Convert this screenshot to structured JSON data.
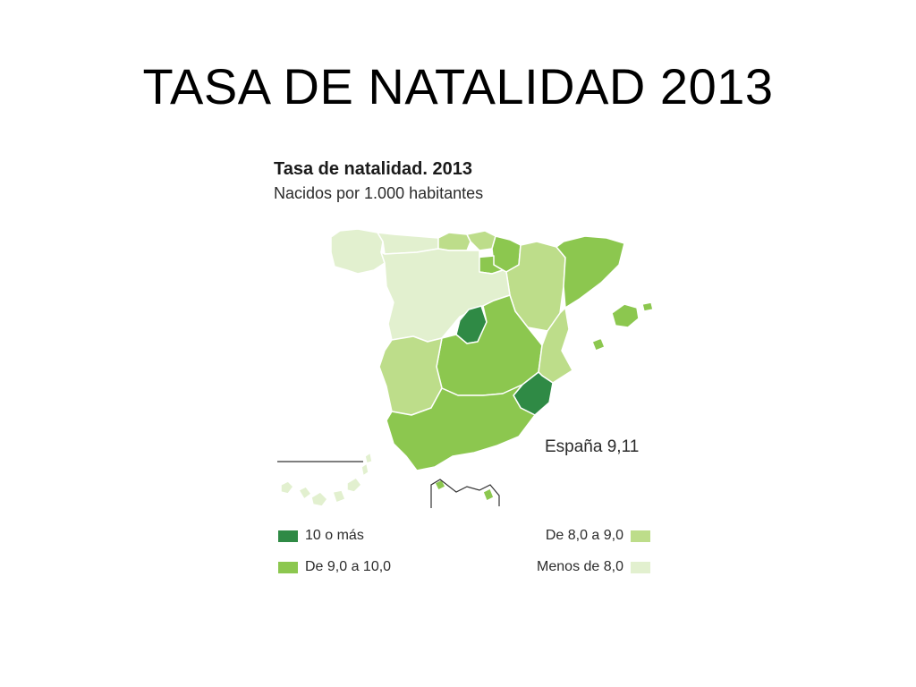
{
  "slide": {
    "title": "TASA DE NATALIDAD 2013"
  },
  "map": {
    "title": "Tasa de natalidad. 2013",
    "subtitle": "Nacidos por 1.000 habitantes",
    "total_label": "España 9,11",
    "colors": {
      "high": "#2f8a45",
      "mid": "#8cc74f",
      "low": "#bddd8a",
      "lowest": "#e2f0cf"
    },
    "legend": [
      {
        "label": "10 o más",
        "class": "high"
      },
      {
        "label": "De 9,0 a 10,0",
        "class": "mid"
      },
      {
        "label": "De 8,0 a 9,0",
        "class": "low"
      },
      {
        "label": "Menos de 8,0",
        "class": "lowest"
      }
    ]
  }
}
